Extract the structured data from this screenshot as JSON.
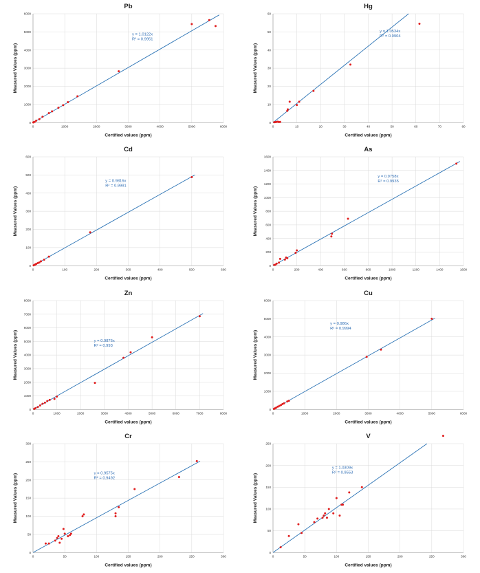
{
  "chart_data": [
    {
      "type": "scatter",
      "title": "Pb",
      "xlabel": "Certified values (ppm)",
      "ylabel": "Measured Values (ppm)",
      "xlim": [
        0,
        6000
      ],
      "ylim": [
        0,
        6000
      ],
      "xticks": [
        0,
        1000,
        2000,
        3000,
        4000,
        5000,
        6000
      ],
      "yticks": [
        0,
        1000,
        2000,
        3000,
        4000,
        5000,
        6000
      ],
      "equation": "y = 1.0122x",
      "r2": "R² = 0.9951",
      "slope": 1.0122,
      "grid": true,
      "points": [
        [
          10,
          10
        ],
        [
          20,
          25
        ],
        [
          50,
          45
        ],
        [
          100,
          110
        ],
        [
          200,
          190
        ],
        [
          300,
          320
        ],
        [
          500,
          520
        ],
        [
          600,
          620
        ],
        [
          800,
          820
        ],
        [
          950,
          960
        ],
        [
          1100,
          1130
        ],
        [
          1400,
          1450
        ],
        [
          2700,
          2830
        ],
        [
          5000,
          5430
        ],
        [
          5550,
          5650
        ],
        [
          5750,
          5320
        ]
      ]
    },
    {
      "type": "scatter",
      "title": "Hg",
      "xlabel": "Certified values (ppm)",
      "ylabel": "Measured Values (ppm)",
      "xlim": [
        0,
        80
      ],
      "ylim": [
        0,
        60
      ],
      "xticks": [
        0,
        10,
        20,
        30,
        40,
        50,
        60,
        70,
        80
      ],
      "yticks": [
        0,
        10,
        20,
        30,
        40,
        50,
        60
      ],
      "equation": "y = 1.0534x",
      "r2": "R² = 0.9904",
      "slope": 1.0534,
      "grid": true,
      "points": [
        [
          0.5,
          0.2
        ],
        [
          1,
          0.3
        ],
        [
          1.5,
          0.4
        ],
        [
          2,
          0.5
        ],
        [
          2.5,
          0.3
        ],
        [
          3,
          0.4
        ],
        [
          6,
          6.5
        ],
        [
          6.2,
          7.3
        ],
        [
          7,
          11.5
        ],
        [
          10,
          9.7
        ],
        [
          11,
          11.5
        ],
        [
          17,
          17.5
        ],
        [
          32.5,
          32
        ],
        [
          61.5,
          54.5
        ]
      ]
    },
    {
      "type": "scatter",
      "title": "Cd",
      "xlabel": "Certified values (ppm)",
      "ylabel": "Measured Values (ppm)",
      "xlim": [
        0,
        600
      ],
      "ylim": [
        0,
        600
      ],
      "xticks": [
        0,
        100,
        200,
        300,
        400,
        500,
        600
      ],
      "yticks": [
        0,
        100,
        200,
        300,
        400,
        500,
        600
      ],
      "equation": "y = 0.9816x",
      "r2": "R² = 0.9991",
      "slope": 0.9816,
      "grid": true,
      "points": [
        [
          2,
          2
        ],
        [
          5,
          5
        ],
        [
          8,
          7
        ],
        [
          10,
          10
        ],
        [
          15,
          14
        ],
        [
          20,
          18
        ],
        [
          25,
          24
        ],
        [
          35,
          33
        ],
        [
          50,
          50
        ],
        [
          180,
          184
        ],
        [
          500,
          488
        ]
      ]
    },
    {
      "type": "scatter",
      "title": "As",
      "xlabel": "Certified values (ppm)",
      "ylabel": "Measured Values (ppm)",
      "xlim": [
        0,
        1600
      ],
      "ylim": [
        0,
        1600
      ],
      "xticks": [
        0,
        200,
        400,
        600,
        800,
        1000,
        1200,
        1400,
        1600
      ],
      "yticks": [
        0,
        200,
        400,
        600,
        800,
        1000,
        1200,
        1400,
        1600
      ],
      "equation": "y = 0.9758x",
      "r2": "R² = 0.9935",
      "slope": 0.9758,
      "grid": true,
      "points": [
        [
          10,
          10
        ],
        [
          20,
          15
        ],
        [
          30,
          30
        ],
        [
          50,
          45
        ],
        [
          60,
          100
        ],
        [
          100,
          90
        ],
        [
          110,
          120
        ],
        [
          120,
          110
        ],
        [
          190,
          190
        ],
        [
          200,
          225
        ],
        [
          490,
          430
        ],
        [
          495,
          470
        ],
        [
          630,
          690
        ],
        [
          1540,
          1500
        ]
      ]
    },
    {
      "type": "scatter",
      "title": "Zn",
      "xlabel": "Certified values (ppm)",
      "ylabel": "Measured Values (ppm)",
      "xlim": [
        0,
        8000
      ],
      "ylim": [
        0,
        8000
      ],
      "xticks": [
        0,
        1000,
        2000,
        3000,
        4000,
        5000,
        6000,
        7000,
        8000
      ],
      "yticks": [
        0,
        1000,
        2000,
        3000,
        4000,
        5000,
        6000,
        7000,
        8000
      ],
      "equation": "y = 0.9876x",
      "r2": "R² = 0.993",
      "slope": 0.9876,
      "grid": true,
      "points": [
        [
          50,
          40
        ],
        [
          100,
          90
        ],
        [
          200,
          180
        ],
        [
          300,
          300
        ],
        [
          400,
          420
        ],
        [
          500,
          500
        ],
        [
          600,
          620
        ],
        [
          700,
          700
        ],
        [
          900,
          780
        ],
        [
          1000,
          950
        ],
        [
          2600,
          1950
        ],
        [
          3800,
          3800
        ],
        [
          4100,
          4200
        ],
        [
          5000,
          5300
        ],
        [
          7000,
          6850
        ]
      ]
    },
    {
      "type": "scatter",
      "title": "Cu",
      "xlabel": "Certified values (ppm)",
      "ylabel": "Measured Values (ppm)",
      "xlim": [
        0,
        6000
      ],
      "ylim": [
        0,
        6000
      ],
      "xticks": [
        0,
        1000,
        2000,
        3000,
        4000,
        5000,
        6000
      ],
      "yticks": [
        0,
        1000,
        2000,
        3000,
        4000,
        5000,
        6000
      ],
      "equation": "y = 0.986x",
      "r2": "R² = 0.9994",
      "slope": 0.986,
      "grid": true,
      "points": [
        [
          30,
          30
        ],
        [
          60,
          60
        ],
        [
          100,
          100
        ],
        [
          150,
          150
        ],
        [
          200,
          200
        ],
        [
          250,
          240
        ],
        [
          300,
          300
        ],
        [
          350,
          340
        ],
        [
          450,
          440
        ],
        [
          500,
          480
        ],
        [
          2950,
          2900
        ],
        [
          3400,
          3300
        ],
        [
          5000,
          5000
        ]
      ]
    },
    {
      "type": "scatter",
      "title": "Cr",
      "xlabel": "Certified values (ppm)",
      "ylabel": "Measured Values (ppm)",
      "xlim": [
        0,
        300
      ],
      "ylim": [
        0,
        300
      ],
      "xticks": [
        0,
        50,
        100,
        150,
        200,
        250,
        300
      ],
      "yticks": [
        0,
        50,
        100,
        150,
        200,
        250,
        300
      ],
      "equation": "y = 0.9575x",
      "r2": "R² = 0.9492",
      "slope": 0.9575,
      "grid": true,
      "points": [
        [
          20,
          25
        ],
        [
          25,
          25
        ],
        [
          35,
          33
        ],
        [
          38,
          40
        ],
        [
          40,
          45
        ],
        [
          42,
          27
        ],
        [
          45,
          38
        ],
        [
          48,
          65
        ],
        [
          50,
          52
        ],
        [
          55,
          45
        ],
        [
          58,
          48
        ],
        [
          60,
          52
        ],
        [
          78,
          100
        ],
        [
          80,
          105
        ],
        [
          130,
          100
        ],
        [
          130,
          108
        ],
        [
          135,
          125
        ],
        [
          160,
          175
        ],
        [
          230,
          208
        ],
        [
          258,
          252
        ]
      ]
    },
    {
      "type": "scatter",
      "title": "V",
      "xlabel": "Certified values (ppm)",
      "ylabel": "Measured Values (ppm)",
      "xlim": [
        0,
        300
      ],
      "ylim": [
        0,
        250
      ],
      "xticks": [
        0,
        50,
        100,
        150,
        200,
        250,
        300
      ],
      "yticks": [
        0,
        50,
        100,
        150,
        200,
        250
      ],
      "equation": "y = 1.0309x",
      "r2": "R² = 0.9553",
      "slope": 1.0309,
      "grid": true,
      "points": [
        [
          12,
          12
        ],
        [
          25,
          38
        ],
        [
          40,
          65
        ],
        [
          45,
          45
        ],
        [
          65,
          70
        ],
        [
          70,
          78
        ],
        [
          78,
          80
        ],
        [
          80,
          85
        ],
        [
          82,
          90
        ],
        [
          85,
          80
        ],
        [
          88,
          100
        ],
        [
          95,
          90
        ],
        [
          100,
          125
        ],
        [
          105,
          85
        ],
        [
          108,
          110
        ],
        [
          110,
          110
        ],
        [
          120,
          138
        ],
        [
          140,
          150
        ],
        [
          268,
          268
        ]
      ]
    }
  ]
}
